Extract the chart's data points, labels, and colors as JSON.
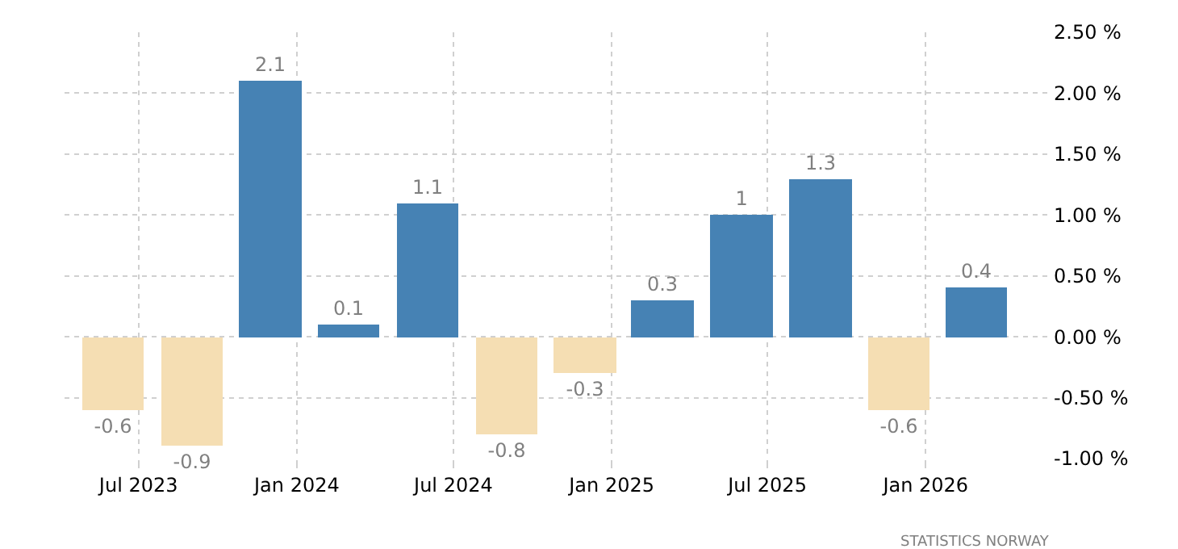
{
  "chart_data": {
    "type": "bar",
    "x": [
      "2023-06",
      "2023-09",
      "2023-12",
      "2024-03",
      "2024-06",
      "2024-09",
      "2024-12",
      "2025-03",
      "2025-06",
      "2025-09",
      "2025-12",
      "2026-03"
    ],
    "values": [
      -0.6,
      -0.9,
      2.1,
      0.1,
      1.1,
      -0.8,
      -0.3,
      0.3,
      1,
      1.3,
      -0.6,
      0.4
    ],
    "colors": [
      "#f5deb3",
      "#f5deb3",
      "#4682b4",
      "#4682b4",
      "#4682b4",
      "#f5deb3",
      "#f5deb3",
      "#4682b4",
      "#4682b4",
      "#4682b4",
      "#f5deb3",
      "#4682b4"
    ],
    "data_labels": true,
    "xlim": [
      "2023-04-06",
      "2026-05-28"
    ],
    "xticks": [
      {
        "value": "2023-07",
        "label": "Jul 2023"
      },
      {
        "value": "2024-01",
        "label": "Jan 2024"
      },
      {
        "value": "2024-07",
        "label": "Jul 2024"
      },
      {
        "value": "2025-01",
        "label": "Jan 2025"
      },
      {
        "value": "2025-07",
        "label": "Jul 2025"
      },
      {
        "value": "2026-01",
        "label": "Jan 2026"
      }
    ],
    "ylim": [
      -1,
      2.5
    ],
    "yticks": [
      {
        "value": -1,
        "label": "-1.00 %"
      },
      {
        "value": -0.5,
        "label": "-0.50 %"
      },
      {
        "value": 0,
        "label": "0.00 %"
      },
      {
        "value": 0.5,
        "label": "0.50 %"
      },
      {
        "value": 1,
        "label": "1.00 %"
      },
      {
        "value": 1.5,
        "label": "1.50 %"
      },
      {
        "value": 2,
        "label": "2.00 %"
      },
      {
        "value": 2.5,
        "label": "2.50 %"
      }
    ],
    "grid": true,
    "annotations": [
      "STATISTICS NORWAY"
    ]
  }
}
